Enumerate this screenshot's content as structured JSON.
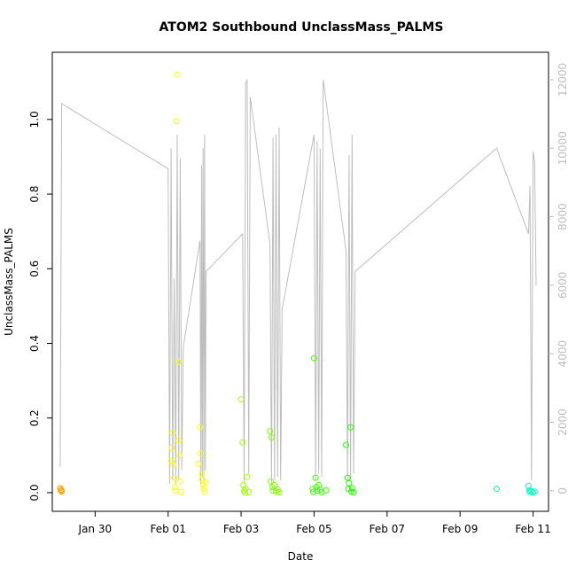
{
  "chart_data": {
    "type": "scatter",
    "title": "ATOM2 Southbound UnclassMass_PALMS",
    "xlabel": "Date",
    "ylabel": "UnclassMass_PALMS",
    "xlim": [
      "2016-01-28T19:50",
      "2016-02-11T10:10"
    ],
    "ylim": [
      -0.05,
      1.18
    ],
    "x_ticks": [
      {
        "at": "2016-01-30T00:00",
        "label": "Jan 30"
      },
      {
        "at": "2016-02-01T00:00",
        "label": "Feb 01"
      },
      {
        "at": "2016-02-03T00:00",
        "label": "Feb 03"
      },
      {
        "at": "2016-02-05T00:00",
        "label": "Feb 05"
      },
      {
        "at": "2016-02-07T00:00",
        "label": "Feb 07"
      },
      {
        "at": "2016-02-09T00:00",
        "label": "Feb 09"
      },
      {
        "at": "2016-02-11T00:00",
        "label": "Feb 11"
      }
    ],
    "y_ticks": [
      0.0,
      0.2,
      0.4,
      0.6,
      0.8,
      1.0
    ],
    "y_tick_labels": [
      "0.0",
      "0.2",
      "0.4",
      "0.6",
      "0.8",
      "1.0"
    ],
    "right_axis": {
      "color": "#bdbdbd",
      "ylim": [
        -600,
        12800
      ],
      "ticks": [
        0,
        2000,
        4000,
        6000,
        8000,
        10000,
        12000
      ],
      "tick_labels": [
        "0",
        "2000",
        "4000",
        "6000",
        "8000",
        "10000",
        "12000"
      ]
    },
    "points": [
      {
        "x": "2016-01-29T01:00",
        "y": 0.012,
        "color": "#ff9f00"
      },
      {
        "x": "2016-01-29T01:30",
        "y": 0.005,
        "color": "#ff9f00"
      },
      {
        "x": "2016-01-29T01:45",
        "y": 0.008,
        "color": "#ff9f00"
      },
      {
        "x": "2016-01-29T02:00",
        "y": 0.003,
        "color": "#ff9f00"
      },
      {
        "x": "2016-02-01T02:00",
        "y": 0.085,
        "color": "#ffff00"
      },
      {
        "x": "2016-02-01T02:30",
        "y": 0.12,
        "color": "#ffff00"
      },
      {
        "x": "2016-02-01T03:00",
        "y": 0.16,
        "color": "#ffff00"
      },
      {
        "x": "2016-02-01T03:30",
        "y": 0.075,
        "color": "#ffff00"
      },
      {
        "x": "2016-02-01T04:00",
        "y": 0.04,
        "color": "#ffff00"
      },
      {
        "x": "2016-02-01T04:30",
        "y": 0.015,
        "color": "#ffff00"
      },
      {
        "x": "2016-02-01T05:00",
        "y": 0.005,
        "color": "#ffff00"
      },
      {
        "x": "2016-02-01T05:30",
        "y": 0.995,
        "color": "#ffff00"
      },
      {
        "x": "2016-02-01T06:00",
        "y": 1.12,
        "color": "#ffff00"
      },
      {
        "x": "2016-02-01T06:30",
        "y": 0.35,
        "color": "#ffff00"
      },
      {
        "x": "2016-02-01T07:00",
        "y": 0.14,
        "color": "#ffff00"
      },
      {
        "x": "2016-02-01T07:30",
        "y": 0.1,
        "color": "#ffff00"
      },
      {
        "x": "2016-02-01T08:00",
        "y": 0.03,
        "color": "#ffff00"
      },
      {
        "x": "2016-02-01T08:30",
        "y": 0.002,
        "color": "#ffff00"
      },
      {
        "x": "2016-02-01T20:00",
        "y": 0.078,
        "color": "#ffff00"
      },
      {
        "x": "2016-02-01T21:00",
        "y": 0.175,
        "color": "#ffff00"
      },
      {
        "x": "2016-02-01T21:30",
        "y": 0.105,
        "color": "#ffff00"
      },
      {
        "x": "2016-02-01T22:00",
        "y": 0.05,
        "color": "#ffff00"
      },
      {
        "x": "2016-02-01T22:30",
        "y": 0.035,
        "color": "#ffff00"
      },
      {
        "x": "2016-02-01T23:00",
        "y": 0.02,
        "color": "#ffff00"
      },
      {
        "x": "2016-02-01T23:30",
        "y": 0.01,
        "color": "#ffff00"
      },
      {
        "x": "2016-02-02T00:00",
        "y": 0.003,
        "color": "#ffff00"
      },
      {
        "x": "2016-02-02T00:30",
        "y": 0.028,
        "color": "#ffff00"
      },
      {
        "x": "2016-02-03T00:00",
        "y": 0.25,
        "color": "#9fff00"
      },
      {
        "x": "2016-02-03T01:00",
        "y": 0.135,
        "color": "#9fff00"
      },
      {
        "x": "2016-02-03T01:30",
        "y": 0.02,
        "color": "#9fff00"
      },
      {
        "x": "2016-02-03T02:00",
        "y": 0.005,
        "color": "#9fff00"
      },
      {
        "x": "2016-02-03T02:30",
        "y": 0.0,
        "color": "#9fff00"
      },
      {
        "x": "2016-02-03T03:00",
        "y": 0.01,
        "color": "#9fff00"
      },
      {
        "x": "2016-02-03T04:00",
        "y": 0.042,
        "color": "#9fff00"
      },
      {
        "x": "2016-02-03T05:00",
        "y": 0.002,
        "color": "#9fff00"
      },
      {
        "x": "2016-02-03T19:00",
        "y": 0.165,
        "color": "#7fff00"
      },
      {
        "x": "2016-02-03T20:00",
        "y": 0.148,
        "color": "#7fff00"
      },
      {
        "x": "2016-02-03T19:30",
        "y": 0.03,
        "color": "#7fff00"
      },
      {
        "x": "2016-02-03T20:30",
        "y": 0.015,
        "color": "#7fff00"
      },
      {
        "x": "2016-02-03T21:00",
        "y": 0.005,
        "color": "#7fff00"
      },
      {
        "x": "2016-02-03T22:00",
        "y": 0.02,
        "color": "#7fff00"
      },
      {
        "x": "2016-02-03T23:00",
        "y": 0.003,
        "color": "#7fff00"
      },
      {
        "x": "2016-02-04T00:00",
        "y": 0.008,
        "color": "#7fff00"
      },
      {
        "x": "2016-02-04T01:00",
        "y": 0.001,
        "color": "#7fff00"
      },
      {
        "x": "2016-02-05T00:00",
        "y": 0.36,
        "color": "#3fff00"
      },
      {
        "x": "2016-02-05T01:00",
        "y": 0.04,
        "color": "#3fff00"
      },
      {
        "x": "2016-02-04T23:00",
        "y": 0.01,
        "color": "#3fff00"
      },
      {
        "x": "2016-02-04T23:30",
        "y": 0.002,
        "color": "#3fff00"
      },
      {
        "x": "2016-02-05T01:30",
        "y": 0.015,
        "color": "#3fff00"
      },
      {
        "x": "2016-02-05T02:00",
        "y": 0.005,
        "color": "#3fff00"
      },
      {
        "x": "2016-02-05T03:00",
        "y": 0.02,
        "color": "#3fff00"
      },
      {
        "x": "2016-02-05T04:00",
        "y": 0.008,
        "color": "#3fff00"
      },
      {
        "x": "2016-02-05T05:00",
        "y": 0.001,
        "color": "#3fff00"
      },
      {
        "x": "2016-02-05T08:00",
        "y": 0.006,
        "color": "#3fff00"
      },
      {
        "x": "2016-02-05T21:00",
        "y": 0.128,
        "color": "#1fff00"
      },
      {
        "x": "2016-02-05T22:00",
        "y": 0.04,
        "color": "#1fff00"
      },
      {
        "x": "2016-02-06T00:00",
        "y": 0.175,
        "color": "#1fff00"
      },
      {
        "x": "2016-02-05T23:00",
        "y": 0.025,
        "color": "#1fff00"
      },
      {
        "x": "2016-02-05T22:30",
        "y": 0.01,
        "color": "#1fff00"
      },
      {
        "x": "2016-02-06T00:30",
        "y": 0.003,
        "color": "#1fff00"
      },
      {
        "x": "2016-02-06T01:00",
        "y": 0.012,
        "color": "#1fff00"
      },
      {
        "x": "2016-02-06T02:00",
        "y": 0.001,
        "color": "#1fff00"
      },
      {
        "x": "2016-02-10T00:00",
        "y": 0.01,
        "color": "#00ff7f"
      },
      {
        "x": "2016-02-10T21:00",
        "y": 0.018,
        "color": "#00ffbf"
      },
      {
        "x": "2016-02-10T21:30",
        "y": 0.006,
        "color": "#00ffbf"
      },
      {
        "x": "2016-02-10T22:00",
        "y": 0.002,
        "color": "#00ffbf"
      },
      {
        "x": "2016-02-10T23:00",
        "y": 0.004,
        "color": "#00ffbf"
      },
      {
        "x": "2016-02-11T00:00",
        "y": 0.001,
        "color": "#00ffbf"
      },
      {
        "x": "2016-02-11T01:00",
        "y": 0.003,
        "color": "#00ffbf"
      }
    ],
    "altitude_line": {
      "color": "#bdbdbd",
      "points": [
        [
          "2016-01-29T01:00",
          700
        ],
        [
          "2016-01-29T02:00",
          11300
        ],
        [
          "2016-02-01T00:00",
          9400
        ],
        [
          "2016-02-01T01:00",
          200
        ],
        [
          "2016-02-01T02:00",
          10000
        ],
        [
          "2016-02-01T03:00",
          300
        ],
        [
          "2016-02-01T04:00",
          6200
        ],
        [
          "2016-02-01T05:00",
          200
        ],
        [
          "2016-02-01T06:00",
          10400
        ],
        [
          "2016-02-01T07:00",
          300
        ],
        [
          "2016-02-01T08:00",
          9700
        ],
        [
          "2016-02-01T09:00",
          600
        ],
        [
          "2016-02-01T10:00",
          4200
        ],
        [
          "2016-02-01T21:00",
          7300
        ],
        [
          "2016-02-01T21:30",
          200
        ],
        [
          "2016-02-01T22:00",
          9500
        ],
        [
          "2016-02-01T22:30",
          400
        ],
        [
          "2016-02-01T23:00",
          10000
        ],
        [
          "2016-02-01T23:30",
          300
        ],
        [
          "2016-02-02T00:00",
          10400
        ],
        [
          "2016-02-02T00:30",
          600
        ],
        [
          "2016-02-02T01:00",
          6400
        ],
        [
          "2016-02-03T01:00",
          7500
        ],
        [
          "2016-02-03T02:00",
          200
        ],
        [
          "2016-02-03T03:00",
          11900
        ],
        [
          "2016-02-03T04:00",
          12000
        ],
        [
          "2016-02-03T05:00",
          500
        ],
        [
          "2016-02-03T06:00",
          11500
        ],
        [
          "2016-02-03T19:00",
          7200
        ],
        [
          "2016-02-03T20:00",
          200
        ],
        [
          "2016-02-03T21:00",
          10300
        ],
        [
          "2016-02-03T22:00",
          300
        ],
        [
          "2016-02-03T23:00",
          10400
        ],
        [
          "2016-02-04T00:00",
          400
        ],
        [
          "2016-02-04T01:00",
          10600
        ],
        [
          "2016-02-04T02:00",
          300
        ],
        [
          "2016-02-04T03:00",
          5300
        ],
        [
          "2016-02-05T00:00",
          10400
        ],
        [
          "2016-02-05T01:00",
          300
        ],
        [
          "2016-02-05T02:00",
          10200
        ],
        [
          "2016-02-05T03:00",
          500
        ],
        [
          "2016-02-05T04:00",
          10000
        ],
        [
          "2016-02-05T05:00",
          400
        ],
        [
          "2016-02-05T06:00",
          12000
        ],
        [
          "2016-02-05T21:00",
          7000
        ],
        [
          "2016-02-05T22:00",
          300
        ],
        [
          "2016-02-05T23:00",
          9800
        ],
        [
          "2016-02-06T00:00",
          300
        ],
        [
          "2016-02-06T01:00",
          10400
        ],
        [
          "2016-02-06T02:00",
          500
        ],
        [
          "2016-02-06T03:00",
          6400
        ],
        [
          "2016-02-10T00:00",
          10000
        ],
        [
          "2016-02-10T21:00",
          7500
        ],
        [
          "2016-02-10T22:00",
          8900
        ],
        [
          "2016-02-10T23:00",
          300
        ],
        [
          "2016-02-11T00:00",
          9900
        ],
        [
          "2016-02-11T01:00",
          9600
        ],
        [
          "2016-02-11T02:00",
          6000
        ]
      ]
    },
    "grid": false,
    "legend": "none"
  }
}
